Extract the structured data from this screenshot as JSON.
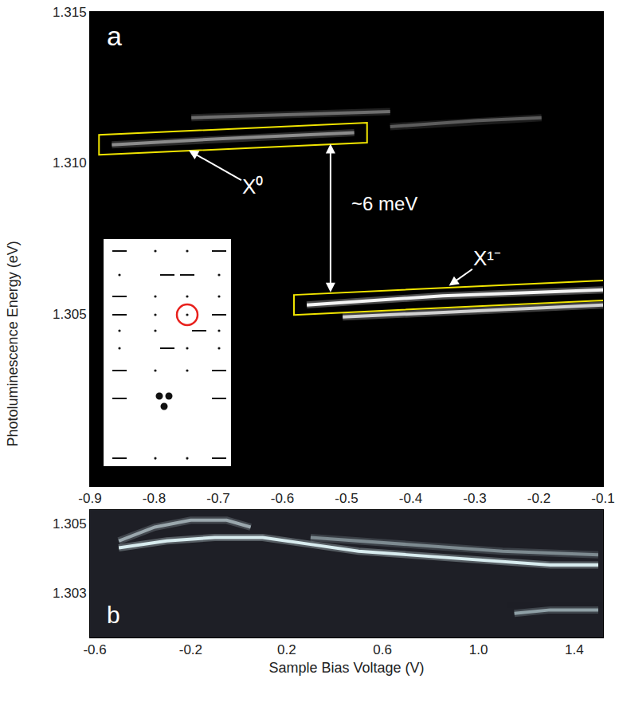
{
  "chart_data": [
    {
      "type": "line",
      "title": "a",
      "ylabel": "Photoluminescence Energy (eV)",
      "annotations": [
        "X⁰",
        "X¹⁻",
        "~6 meV"
      ],
      "xlim": [
        -0.9,
        -0.1
      ],
      "xticks": [
        -0.9,
        -0.8,
        -0.7,
        -0.6,
        -0.5,
        -0.4,
        -0.3,
        -0.2,
        -0.1
      ],
      "ylim": [
        1.2993,
        1.315
      ],
      "yticks": [
        1.305,
        {
          "value": 1.31,
          "label": "1.310"
        },
        1.315
      ],
      "grid": false,
      "series": [
        {
          "color": "#6e6e6e",
          "x": [
            -0.742,
            -0.6,
            -0.432
          ],
          "values": [
            1.3115,
            1.3116,
            1.3117
          ]
        },
        {
          "color": "#8c8c8c",
          "x": [
            -0.866,
            -0.7,
            -0.488
          ],
          "values": [
            1.3106,
            1.3108,
            1.311
          ]
        },
        {
          "color": "#5c5c5c",
          "x": [
            -0.432,
            -0.3,
            -0.196
          ],
          "values": [
            1.3112,
            1.3114,
            1.3115
          ]
        },
        {
          "color": "#f4f4f4",
          "x": [
            -0.562,
            -0.35,
            -0.1
          ],
          "values": [
            1.3053,
            1.3056,
            1.3058
          ]
        },
        {
          "color": "#d2d2d2",
          "x": [
            -0.506,
            -0.3,
            -0.1
          ],
          "values": [
            1.3049,
            1.3051,
            1.3053
          ]
        }
      ]
    },
    {
      "type": "line",
      "title": "b",
      "xlabel": "Sample Bias Voltage (V)",
      "xlim": [
        -0.62,
        1.52
      ],
      "xticks": [
        -0.6,
        -0.2,
        0.2,
        0.6,
        {
          "value": 1,
          "label": "1.0"
        },
        1.4
      ],
      "ylim": [
        1.3017,
        1.3054
      ],
      "yticks": [
        1.303,
        1.305
      ],
      "grid": false,
      "series": [
        {
          "color": "#9aa7ad",
          "x": [
            -0.5,
            -0.35,
            -0.2,
            -0.05,
            0.05
          ],
          "values": [
            1.3045,
            1.3049,
            1.3051,
            1.3051,
            1.3049
          ]
        },
        {
          "color": "#d8ecef",
          "x": [
            -0.5,
            -0.3,
            -0.1,
            0.1,
            0.3,
            0.5,
            0.7,
            0.9,
            1.1,
            1.3,
            1.5
          ],
          "values": [
            1.3043,
            1.3045,
            1.3046,
            1.3046,
            1.3044,
            1.3042,
            1.3041,
            1.304,
            1.3039,
            1.3038,
            1.3038
          ]
        },
        {
          "color": "#7d8a90",
          "x": [
            0.3,
            0.7,
            1.1,
            1.5
          ],
          "values": [
            1.3046,
            1.3044,
            1.3042,
            1.3041
          ]
        },
        {
          "color": "#8fa0a6",
          "x": [
            1.15,
            1.3,
            1.5
          ],
          "values": [
            1.3024,
            1.3025,
            1.3025
          ]
        }
      ]
    }
  ]
}
